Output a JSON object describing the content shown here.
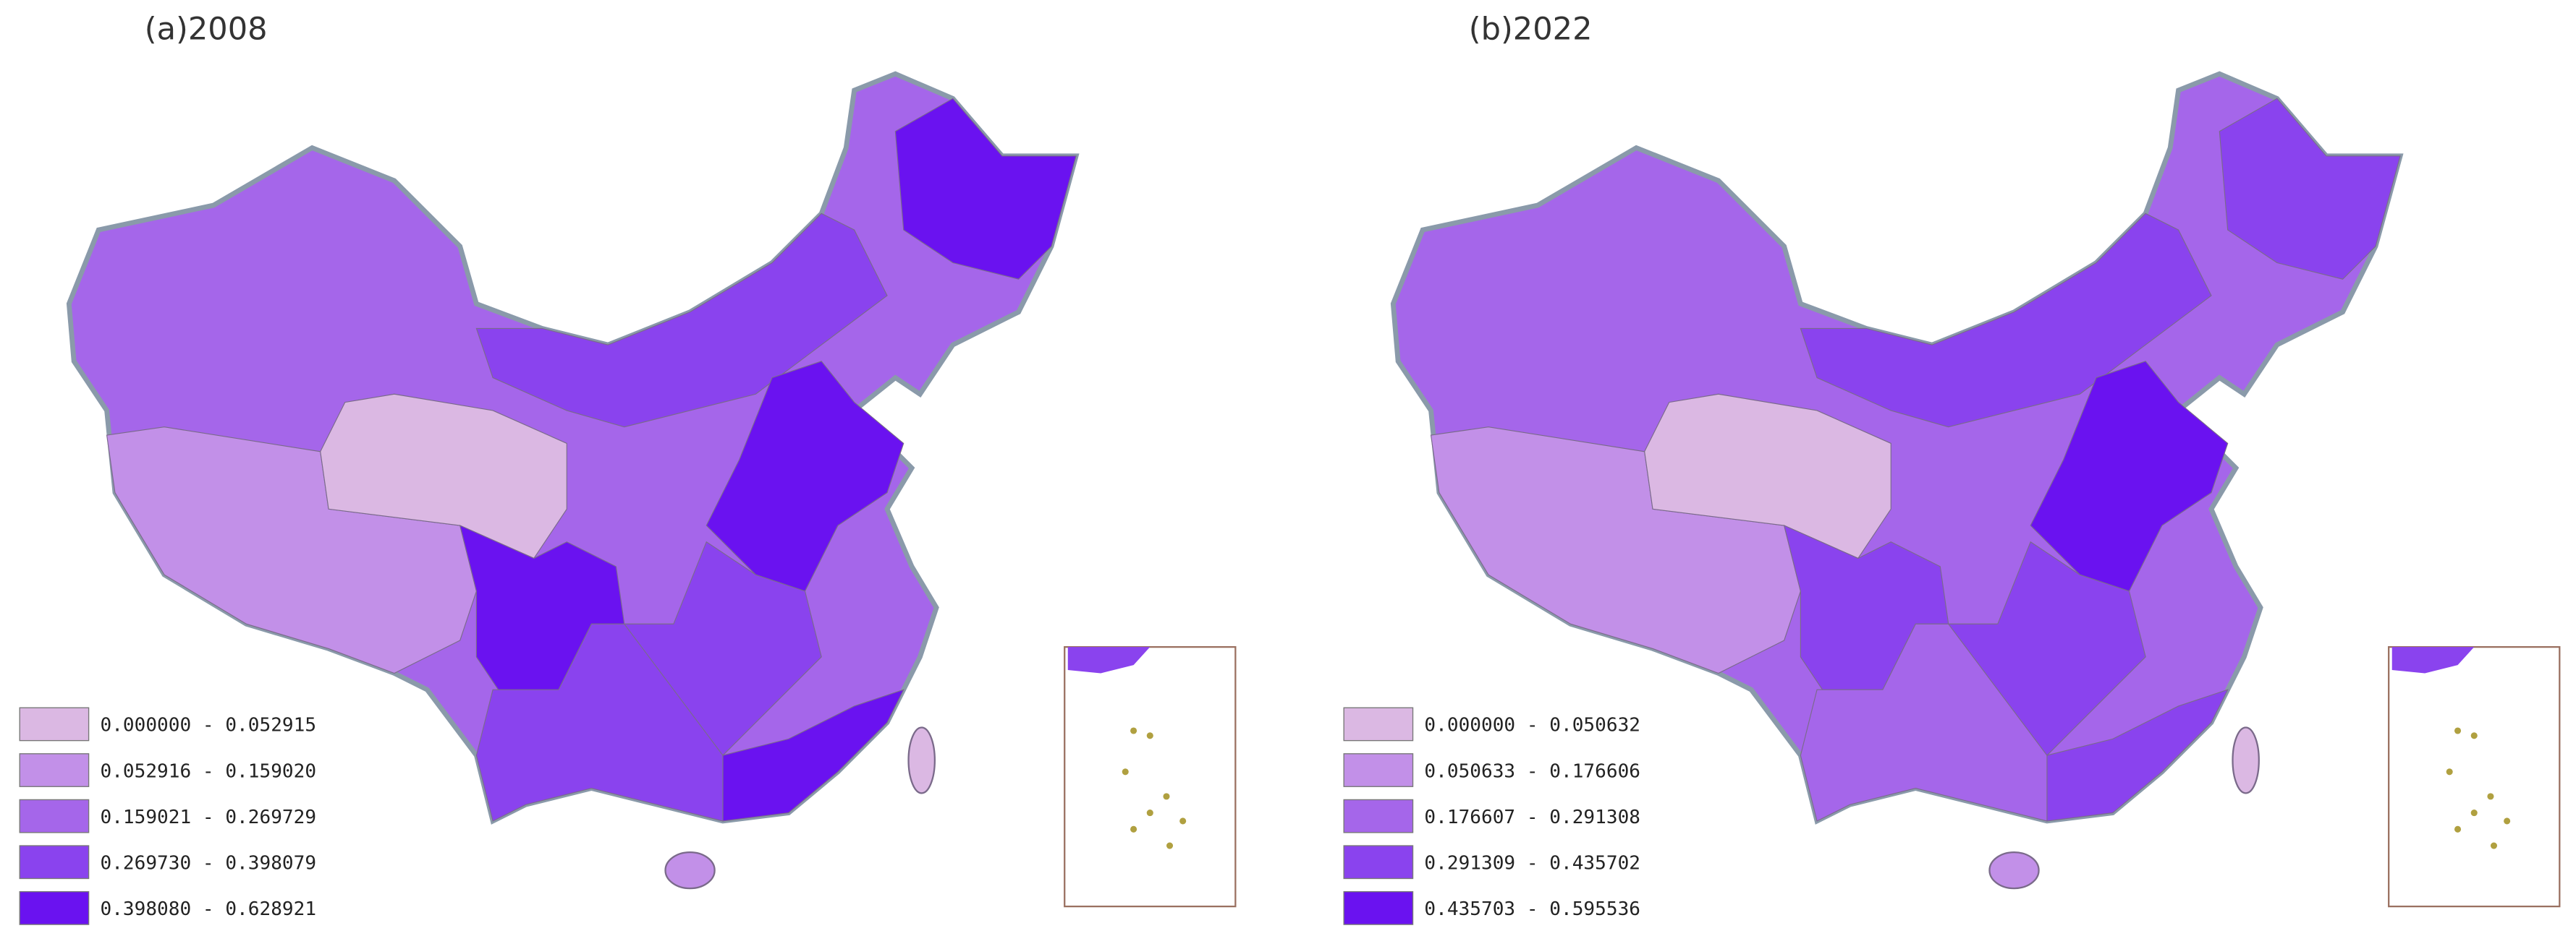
{
  "maps": [
    {
      "title": "(a)2008",
      "legend": [
        {
          "label": "0.000000 - 0.052915",
          "color": "#dbb8e3"
        },
        {
          "label": "0.052916 - 0.159020",
          "color": "#c290e8"
        },
        {
          "label": "0.159021 - 0.269729",
          "color": "#a566ea"
        },
        {
          "label": "0.269730 - 0.398079",
          "color": "#8a43ee"
        },
        {
          "label": "0.398080 - 0.628921",
          "color": "#6a12f0"
        }
      ]
    },
    {
      "title": "(b)2022",
      "legend": [
        {
          "label": "0.000000 - 0.050632",
          "color": "#dbb8e3"
        },
        {
          "label": "0.050633 - 0.176606",
          "color": "#c290e8"
        },
        {
          "label": "0.176607 - 0.291308",
          "color": "#a566ea"
        },
        {
          "label": "0.291309 - 0.435702",
          "color": "#8a43ee"
        },
        {
          "label": "0.435703 - 0.595536",
          "color": "#6a12f0"
        }
      ]
    }
  ]
}
